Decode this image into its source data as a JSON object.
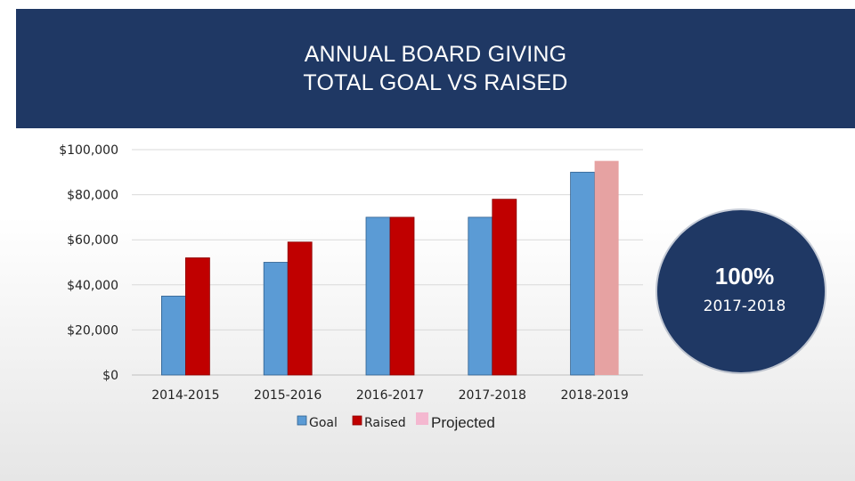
{
  "header": {
    "title_line1": "ANNUAL BOARD GIVING",
    "title_line2": "TOTAL GOAL VS RAISED"
  },
  "badge": {
    "percent": "100%",
    "year": "2017-2018"
  },
  "colors": {
    "header_bg": "#1f3864",
    "goal": "#5b9bd5",
    "raised": "#c00000",
    "projected": "#e6a2a2",
    "legend_projected": "#f4b8d0"
  },
  "chart_data": {
    "type": "bar",
    "title": "ANNUAL BOARD GIVING TOTAL GOAL VS RAISED",
    "categories": [
      "2014-2015",
      "2015-2016",
      "2016-2017",
      "2017-2018",
      "2018-2019"
    ],
    "series": [
      {
        "name": "Goal",
        "values": [
          35000,
          50000,
          70000,
          70000,
          90000
        ]
      },
      {
        "name": "Raised",
        "values": [
          52000,
          59000,
          70000,
          78000,
          null
        ]
      },
      {
        "name": "Projected",
        "values": [
          null,
          null,
          null,
          null,
          95000
        ]
      }
    ],
    "ylim": [
      0,
      100000
    ],
    "yticks": [
      0,
      20000,
      40000,
      60000,
      80000,
      100000
    ],
    "ytick_labels": [
      "$0",
      "$20,000",
      "$40,000",
      "$60,000",
      "$80,000",
      "$100,000"
    ],
    "xlabel": "",
    "ylabel": "",
    "grid": true,
    "legend": [
      "Goal",
      "Raised",
      "Projected"
    ],
    "legend_position": "bottom"
  }
}
